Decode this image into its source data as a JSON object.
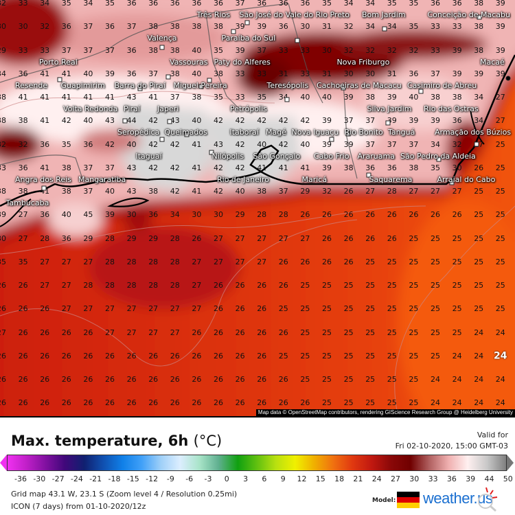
{
  "map": {
    "attribution": "Map data © OpenStreetMap contributors, rendering GIScience Research Group @ Heidelberg University",
    "grid_rows": [
      [
        32,
        33,
        34,
        35,
        34,
        35,
        36,
        36,
        36,
        36,
        36,
        37,
        36,
        36,
        36,
        35,
        34,
        34,
        35,
        35,
        36,
        36,
        38,
        39
      ],
      [
        30,
        30,
        32,
        36,
        37,
        36,
        37,
        38,
        38,
        38,
        38,
        39,
        39,
        36,
        30,
        31,
        32,
        34,
        34,
        35,
        33,
        33,
        38,
        39
      ],
      [
        29,
        33,
        33,
        37,
        37,
        37,
        36,
        38,
        38,
        40,
        35,
        39,
        37,
        33,
        33,
        30,
        32,
        32,
        32,
        32,
        33,
        39,
        38,
        39
      ],
      [
        34,
        36,
        41,
        41,
        40,
        39,
        36,
        37,
        38,
        40,
        38,
        33,
        33,
        31,
        33,
        31,
        30,
        30,
        31,
        36,
        37,
        39,
        39,
        39
      ],
      [
        38,
        41,
        41,
        41,
        41,
        41,
        43,
        41,
        37,
        38,
        35,
        33,
        35,
        34,
        40,
        40,
        39,
        38,
        39,
        40,
        38,
        38,
        34,
        27
      ],
      [
        38,
        38,
        41,
        42,
        40,
        43,
        44,
        42,
        43,
        40,
        42,
        42,
        42,
        42,
        42,
        39,
        37,
        37,
        39,
        39,
        39,
        36,
        34,
        27
      ],
      [
        32,
        32,
        36,
        35,
        36,
        42,
        40,
        42,
        42,
        41,
        43,
        42,
        40,
        42,
        40,
        39,
        39,
        37,
        37,
        37,
        34,
        32,
        27,
        25
      ],
      [
        33,
        36,
        41,
        38,
        37,
        37,
        43,
        42,
        42,
        41,
        42,
        42,
        41,
        41,
        41,
        39,
        38,
        36,
        36,
        38,
        35,
        30,
        26,
        25
      ],
      [
        38,
        38,
        41,
        38,
        37,
        40,
        43,
        38,
        42,
        41,
        42,
        40,
        38,
        37,
        29,
        32,
        26,
        27,
        28,
        27,
        27,
        27,
        25,
        25
      ],
      [
        39,
        27,
        36,
        40,
        45,
        39,
        30,
        36,
        34,
        30,
        30,
        29,
        28,
        28,
        26,
        26,
        26,
        26,
        26,
        26,
        26,
        26,
        25,
        25
      ],
      [
        30,
        27,
        28,
        36,
        29,
        28,
        29,
        29,
        28,
        26,
        27,
        27,
        27,
        27,
        27,
        26,
        26,
        26,
        26,
        25,
        25,
        25,
        25,
        25
      ],
      [
        35,
        35,
        27,
        27,
        27,
        28,
        28,
        28,
        28,
        27,
        27,
        27,
        27,
        26,
        26,
        26,
        26,
        25,
        25,
        25,
        25,
        25,
        25,
        25
      ],
      [
        26,
        26,
        27,
        27,
        28,
        28,
        28,
        28,
        28,
        27,
        26,
        26,
        26,
        26,
        25,
        25,
        25,
        25,
        25,
        25,
        25,
        25,
        25,
        25
      ],
      [
        26,
        26,
        26,
        27,
        27,
        27,
        27,
        27,
        27,
        27,
        26,
        26,
        26,
        25,
        25,
        25,
        25,
        25,
        25,
        25,
        25,
        25,
        25,
        25
      ],
      [
        27,
        26,
        26,
        26,
        26,
        27,
        27,
        27,
        27,
        26,
        26,
        26,
        26,
        26,
        25,
        25,
        25,
        25,
        25,
        25,
        25,
        25,
        24,
        24
      ],
      [
        26,
        26,
        26,
        26,
        26,
        26,
        26,
        26,
        26,
        26,
        26,
        26,
        26,
        25,
        25,
        25,
        25,
        25,
        25,
        25,
        25,
        24,
        24,
        24
      ],
      [
        26,
        26,
        26,
        26,
        26,
        26,
        26,
        26,
        26,
        26,
        26,
        26,
        26,
        26,
        25,
        25,
        25,
        25,
        25,
        25,
        24,
        24,
        24,
        24
      ],
      [
        26,
        26,
        26,
        26,
        26,
        26,
        26,
        26,
        26,
        26,
        26,
        26,
        26,
        26,
        26,
        25,
        25,
        25,
        25,
        25,
        24,
        24,
        24,
        24
      ]
    ],
    "highlighted_value": "24",
    "cities": [
      "São José\ndo Vale\ndo Rio\nPreto",
      "Três Rios",
      "Paraíba\ndo Sul",
      "Bom Jardim",
      "Conceição\nde Macabu",
      "Valença",
      "Nova Friburgo",
      "Porto Real",
      "Barra do\nPiraí",
      "Vassouras",
      "Paty do\nAlferes",
      "Miguel\nPereira",
      "Teresópolis",
      "Cachoeiras\nde Macacu",
      "Casimiro\nde Abreu",
      "Macaé",
      "Resende",
      "Volta Redonda",
      "Petrópolis",
      "Guapimirim",
      "Rio das Ostras",
      "Piraí",
      "Japeri",
      "Queimados",
      "Silva Jardim",
      "Magé",
      "Seropédica",
      "Nova Iguaçu",
      "Rio Bonito",
      "Itaboraí",
      "Tanguá",
      "São Pedro\nda Aldeia",
      "Armação\ndos Búzios",
      "Nilópolis",
      "São Gonçalo",
      "Itaguaí",
      "Rio de Janeiro",
      "Araruama",
      "Cabo Frio",
      "Maricá",
      "Saquarema",
      "Mangaratiba",
      "Angra dos\nReis",
      "Arraial\ndo Cabo",
      "Tambucaba"
    ]
  },
  "header": {
    "title": "Max. temperature, 6h",
    "unit": "(°C)",
    "valid_label": "Valid for",
    "valid_time": "Fri 02-10-2020, 15:00 GMT-03"
  },
  "legend": {
    "ticks": [
      "-36",
      "-30",
      "-27",
      "-24",
      "-21",
      "-18",
      "-15",
      "-12",
      "-9",
      "-6",
      "-3",
      "0",
      "3",
      "6",
      "9",
      "12",
      "15",
      "18",
      "21",
      "24",
      "27",
      "30",
      "33",
      "36",
      "39",
      "44",
      "50"
    ],
    "colors": [
      "#f030f0",
      "#c020c8",
      "#8010a0",
      "#40087a",
      "#102070",
      "#1050b0",
      "#1080e8",
      "#40a0f8",
      "#a0d0f8",
      "#dceeff",
      "#a8e4c8",
      "#60b090",
      "#10a010",
      "#60c010",
      "#b8e010",
      "#f0f000",
      "#f0b000",
      "#f07010",
      "#e03810",
      "#c01810",
      "#8a0808",
      "#700000",
      "#b06060",
      "#f0b0b0",
      "#fff0f0",
      "#c8c8c8",
      "#808080"
    ]
  },
  "footer": {
    "grid_info": "Grid map 43.1 W, 23.1 S (Zoom level 4 / Resolution 0.25mi)",
    "model_run": "ICON (7 days) from 01-10-2020/12z",
    "model_label": "Model:",
    "brand": "weather.us",
    "flag_colors": [
      "#000000",
      "#dd0000",
      "#ffce00"
    ]
  }
}
